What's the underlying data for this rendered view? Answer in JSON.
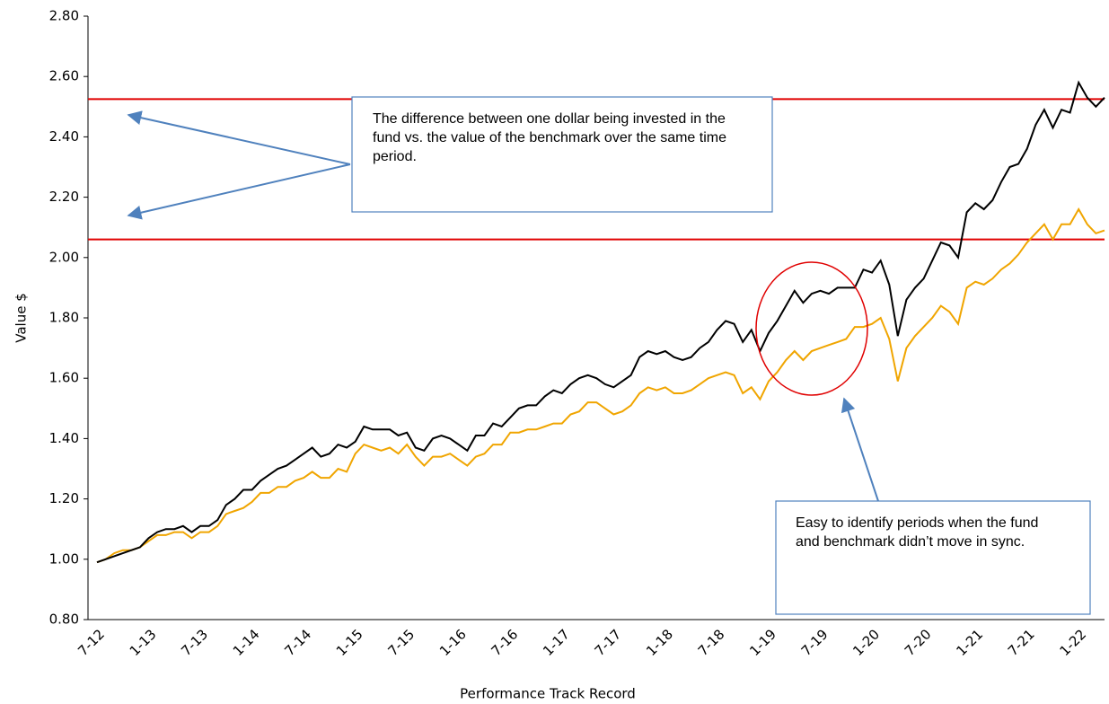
{
  "chart_data": {
    "type": "line",
    "x_label": "Performance Track Record",
    "y_label": "Value $",
    "categories": [
      "7-12",
      null,
      null,
      null,
      null,
      null,
      "1-13",
      null,
      null,
      null,
      null,
      null,
      "7-13",
      null,
      null,
      null,
      null,
      null,
      "1-14",
      null,
      null,
      null,
      null,
      null,
      "7-14",
      null,
      null,
      null,
      null,
      null,
      "1-15",
      null,
      null,
      null,
      null,
      null,
      "7-15",
      null,
      null,
      null,
      null,
      null,
      "1-16",
      null,
      null,
      null,
      null,
      null,
      "7-16",
      null,
      null,
      null,
      null,
      null,
      "1-17",
      null,
      null,
      null,
      null,
      null,
      "7-17",
      null,
      null,
      null,
      null,
      null,
      "1-18",
      null,
      null,
      null,
      null,
      null,
      "7-18",
      null,
      null,
      null,
      null,
      null,
      "1-19",
      null,
      null,
      null,
      null,
      null,
      "7-19",
      null,
      null,
      null,
      null,
      null,
      "1-20",
      null,
      null,
      null,
      null,
      null,
      "7-20",
      null,
      null,
      null,
      null,
      null,
      "1-21",
      null,
      null,
      null,
      null,
      null,
      "7-21",
      null,
      null,
      null,
      null,
      null,
      "1-22",
      null,
      null,
      null
    ],
    "series": [
      {
        "color": "#000000",
        "values": [
          0.99,
          1.0,
          1.01,
          1.02,
          1.03,
          1.04,
          1.07,
          1.09,
          1.1,
          1.1,
          1.11,
          1.09,
          1.11,
          1.11,
          1.13,
          1.18,
          1.2,
          1.23,
          1.23,
          1.26,
          1.28,
          1.3,
          1.31,
          1.33,
          1.35,
          1.37,
          1.34,
          1.35,
          1.38,
          1.37,
          1.39,
          1.44,
          1.43,
          1.43,
          1.43,
          1.41,
          1.42,
          1.37,
          1.36,
          1.4,
          1.41,
          1.4,
          1.38,
          1.36,
          1.41,
          1.41,
          1.45,
          1.44,
          1.47,
          1.5,
          1.51,
          1.51,
          1.54,
          1.56,
          1.55,
          1.58,
          1.6,
          1.61,
          1.6,
          1.58,
          1.57,
          1.59,
          1.61,
          1.67,
          1.69,
          1.68,
          1.69,
          1.67,
          1.66,
          1.67,
          1.7,
          1.72,
          1.76,
          1.79,
          1.78,
          1.72,
          1.76,
          1.69,
          1.75,
          1.79,
          1.84,
          1.89,
          1.85,
          1.88,
          1.89,
          1.88,
          1.9,
          1.9,
          1.9,
          1.96,
          1.95,
          1.99,
          1.91,
          1.74,
          1.86,
          1.9,
          1.93,
          1.99,
          2.05,
          2.04,
          2.0,
          2.15,
          2.18,
          2.16,
          2.19,
          2.25,
          2.3,
          2.31,
          2.36,
          2.44,
          2.49,
          2.43,
          2.49,
          2.48,
          2.58,
          2.53,
          2.5,
          2.53
        ]
      },
      {
        "color": "#f0a500",
        "values": [
          0.99,
          1.0,
          1.02,
          1.03,
          1.03,
          1.04,
          1.06,
          1.08,
          1.08,
          1.09,
          1.09,
          1.07,
          1.09,
          1.09,
          1.11,
          1.15,
          1.16,
          1.17,
          1.19,
          1.22,
          1.22,
          1.24,
          1.24,
          1.26,
          1.27,
          1.29,
          1.27,
          1.27,
          1.3,
          1.29,
          1.35,
          1.38,
          1.37,
          1.36,
          1.37,
          1.35,
          1.38,
          1.34,
          1.31,
          1.34,
          1.34,
          1.35,
          1.33,
          1.31,
          1.34,
          1.35,
          1.38,
          1.38,
          1.42,
          1.42,
          1.43,
          1.43,
          1.44,
          1.45,
          1.45,
          1.48,
          1.49,
          1.52,
          1.52,
          1.5,
          1.48,
          1.49,
          1.51,
          1.55,
          1.57,
          1.56,
          1.57,
          1.55,
          1.55,
          1.56,
          1.58,
          1.6,
          1.61,
          1.62,
          1.61,
          1.55,
          1.57,
          1.53,
          1.59,
          1.62,
          1.66,
          1.69,
          1.66,
          1.69,
          1.7,
          1.71,
          1.72,
          1.73,
          1.77,
          1.77,
          1.78,
          1.8,
          1.73,
          1.59,
          1.7,
          1.74,
          1.77,
          1.8,
          1.84,
          1.82,
          1.78,
          1.9,
          1.92,
          1.91,
          1.93,
          1.96,
          1.98,
          2.01,
          2.05,
          2.08,
          2.11,
          2.06,
          2.11,
          2.11,
          2.16,
          2.11,
          2.08,
          2.09
        ]
      }
    ],
    "reference_lines": [
      2.525,
      2.06
    ],
    "reference_color": "#e00000",
    "ylim": [
      0.8,
      2.8
    ],
    "yticks": [
      {
        "value": 0.8,
        "label": "0.80"
      },
      {
        "value": 1.0,
        "label": "1.00"
      },
      {
        "value": 1.2,
        "label": "1.20"
      },
      {
        "value": 1.4,
        "label": "1.40"
      },
      {
        "value": 1.6,
        "label": "1.60"
      },
      {
        "value": 1.8,
        "label": "1.80"
      },
      {
        "value": 2.0,
        "label": "2.00"
      },
      {
        "value": 2.2,
        "label": "2.20"
      },
      {
        "value": 2.4,
        "label": "2.40"
      },
      {
        "value": 2.6,
        "label": "2.60"
      },
      {
        "value": 2.8,
        "label": "2.80"
      }
    ],
    "annotations": [
      "The difference between one dollar being invested in the fund vs. the value of the benchmark over the same time period.",
      "Easy to identify periods when the fund and benchmark didn’t move in sync."
    ]
  }
}
